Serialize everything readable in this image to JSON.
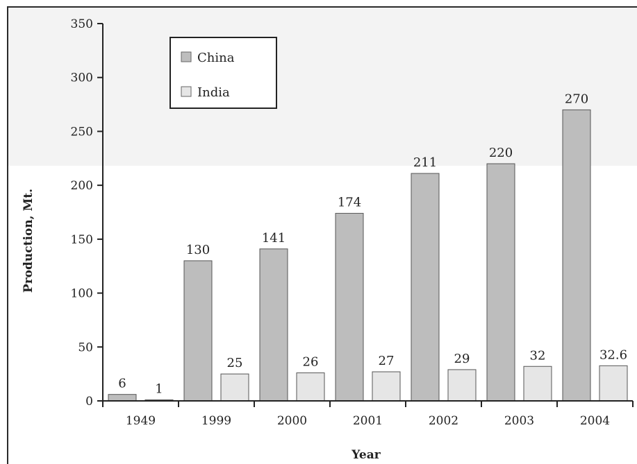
{
  "chart_data": {
    "type": "bar",
    "categories": [
      "1949",
      "1999",
      "2000",
      "2001",
      "2002",
      "2003",
      "2004"
    ],
    "series": [
      {
        "name": "China",
        "values": [
          6,
          130,
          141,
          174,
          211,
          220,
          270
        ],
        "labels": [
          "6",
          "130",
          "141",
          "174",
          "211",
          "220",
          "270"
        ],
        "color": "#bdbdbd"
      },
      {
        "name": "India",
        "values": [
          1,
          25,
          26,
          27,
          29,
          32,
          32.6
        ],
        "labels": [
          "1",
          "25",
          "26",
          "27",
          "29",
          "32",
          "32.6"
        ],
        "color": "#e6e6e6"
      }
    ],
    "xlabel": "Year",
    "ylabel": "Production, Mt.",
    "ylim": [
      0,
      350
    ],
    "yticks": [
      0,
      50,
      100,
      150,
      200,
      250,
      300,
      350
    ],
    "grid": false,
    "legend_position": "top-left"
  }
}
